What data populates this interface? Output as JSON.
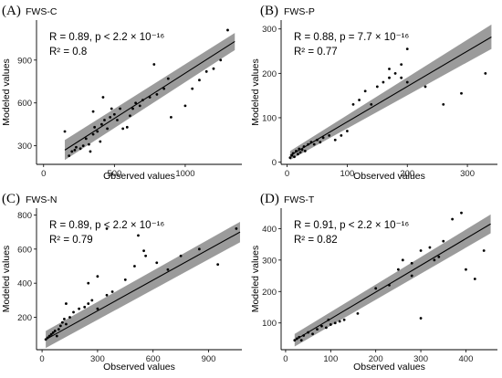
{
  "chart_data": [
    {
      "type": "scatter",
      "panel_letter": "(A)",
      "panel_tag": "FWS-C",
      "stat_line1": "R = 0.89, p < 2.2 × 10⁻¹⁶",
      "stat_line2": "R² = 0.8",
      "xlabel": "Observed values",
      "ylabel": "Modeled values",
      "xlim": [
        -50,
        1400
      ],
      "ylim": [
        170,
        1180
      ],
      "xticks": [
        0,
        500,
        1000
      ],
      "yticks": [
        300,
        600,
        900
      ],
      "fit_line": {
        "x": [
          150,
          1350
        ],
        "y": [
          270,
          1030
        ]
      },
      "confidence_band": {
        "x": [
          150,
          1350
        ],
        "lower": [
          200,
          970
        ],
        "upper": [
          340,
          1090
        ]
      },
      "points": [
        [
          180,
          230
        ],
        [
          200,
          260
        ],
        [
          220,
          270
        ],
        [
          230,
          290
        ],
        [
          260,
          280
        ],
        [
          280,
          300
        ],
        [
          300,
          350
        ],
        [
          320,
          310
        ],
        [
          330,
          260
        ],
        [
          350,
          380
        ],
        [
          360,
          430
        ],
        [
          380,
          400
        ],
        [
          400,
          330
        ],
        [
          410,
          450
        ],
        [
          430,
          480
        ],
        [
          450,
          420
        ],
        [
          470,
          500
        ],
        [
          480,
          560
        ],
        [
          500,
          520
        ],
        [
          520,
          480
        ],
        [
          540,
          560
        ],
        [
          560,
          420
        ],
        [
          590,
          430
        ],
        [
          610,
          510
        ],
        [
          630,
          560
        ],
        [
          650,
          600
        ],
        [
          680,
          580
        ],
        [
          700,
          620
        ],
        [
          750,
          640
        ],
        [
          800,
          660
        ],
        [
          850,
          700
        ],
        [
          900,
          500
        ],
        [
          1000,
          580
        ],
        [
          1050,
          700
        ],
        [
          1100,
          760
        ],
        [
          1150,
          820
        ],
        [
          1200,
          840
        ],
        [
          1250,
          900
        ],
        [
          1300,
          1110
        ],
        [
          150,
          400
        ],
        [
          350,
          540
        ],
        [
          420,
          640
        ],
        [
          780,
          870
        ],
        [
          880,
          770
        ]
      ]
    },
    {
      "type": "scatter",
      "panel_letter": "(B)",
      "panel_tag": "FWS-P",
      "stat_line1": "R = 0.88, p = 7.7 × 10⁻¹⁶",
      "stat_line2": "R² = 0.77",
      "xlabel": "Observed values",
      "ylabel": "Modeled values",
      "xlim": [
        -10,
        350
      ],
      "ylim": [
        -5,
        320
      ],
      "xticks": [
        0,
        100,
        200,
        300
      ],
      "yticks": [
        0,
        100,
        200,
        300
      ],
      "fit_line": {
        "x": [
          5,
          340
        ],
        "y": [
          15,
          282
        ]
      },
      "confidence_band": {
        "x": [
          5,
          340
        ],
        "lower": [
          5,
          255
        ],
        "upper": [
          25,
          310
        ]
      },
      "points": [
        [
          5,
          10
        ],
        [
          8,
          15
        ],
        [
          10,
          20
        ],
        [
          12,
          12
        ],
        [
          15,
          25
        ],
        [
          18,
          18
        ],
        [
          20,
          30
        ],
        [
          22,
          22
        ],
        [
          25,
          28
        ],
        [
          28,
          35
        ],
        [
          30,
          25
        ],
        [
          35,
          40
        ],
        [
          40,
          45
        ],
        [
          45,
          40
        ],
        [
          50,
          50
        ],
        [
          55,
          45
        ],
        [
          60,
          55
        ],
        [
          70,
          60
        ],
        [
          80,
          50
        ],
        [
          90,
          60
        ],
        [
          100,
          70
        ],
        [
          110,
          130
        ],
        [
          120,
          140
        ],
        [
          130,
          160
        ],
        [
          140,
          130
        ],
        [
          150,
          170
        ],
        [
          160,
          180
        ],
        [
          170,
          210
        ],
        [
          180,
          200
        ],
        [
          190,
          220
        ],
        [
          200,
          180
        ],
        [
          230,
          170
        ],
        [
          260,
          130
        ],
        [
          290,
          155
        ],
        [
          330,
          200
        ],
        [
          200,
          255
        ],
        [
          190,
          190
        ],
        [
          170,
          190
        ]
      ]
    },
    {
      "type": "scatter",
      "panel_letter": "(C)",
      "panel_tag": "FWS-N",
      "stat_line1": "R = 0.89, p < 2.2 × 10⁻¹⁶",
      "stat_line2": "R² = 0.79",
      "xlabel": "Observed values",
      "ylabel": "Modeled values",
      "xlim": [
        -30,
        1080
      ],
      "ylim": [
        10,
        840
      ],
      "xticks": [
        0,
        300,
        600,
        900
      ],
      "yticks": [
        200,
        400,
        600,
        800
      ],
      "fit_line": {
        "x": [
          20,
          1070
        ],
        "y": [
          70,
          700
        ]
      },
      "confidence_band": {
        "x": [
          20,
          1070
        ],
        "lower": [
          20,
          640
        ],
        "upper": [
          120,
          760
        ]
      },
      "points": [
        [
          20,
          70
        ],
        [
          30,
          80
        ],
        [
          40,
          90
        ],
        [
          50,
          100
        ],
        [
          60,
          110
        ],
        [
          70,
          120
        ],
        [
          80,
          90
        ],
        [
          90,
          130
        ],
        [
          100,
          150
        ],
        [
          110,
          170
        ],
        [
          120,
          190
        ],
        [
          130,
          160
        ],
        [
          150,
          200
        ],
        [
          170,
          230
        ],
        [
          200,
          250
        ],
        [
          230,
          260
        ],
        [
          250,
          280
        ],
        [
          270,
          300
        ],
        [
          300,
          250
        ],
        [
          350,
          330
        ],
        [
          380,
          350
        ],
        [
          450,
          420
        ],
        [
          500,
          500
        ],
        [
          520,
          680
        ],
        [
          560,
          560
        ],
        [
          620,
          520
        ],
        [
          680,
          480
        ],
        [
          750,
          560
        ],
        [
          850,
          600
        ],
        [
          950,
          510
        ],
        [
          1050,
          720
        ],
        [
          130,
          280
        ],
        [
          250,
          400
        ],
        [
          300,
          440
        ],
        [
          350,
          720
        ],
        [
          550,
          590
        ]
      ]
    },
    {
      "type": "scatter",
      "panel_letter": "(D)",
      "panel_tag": "FWS-T",
      "stat_line1": "R = 0.91, p < 2.2 × 10⁻¹⁶",
      "stat_line2": "R² = 0.82",
      "xlabel": "Observed values",
      "ylabel": "Modeled values",
      "xlim": [
        -10,
        470
      ],
      "ylim": [
        15,
        465
      ],
      "xticks": [
        0,
        100,
        200,
        300,
        400
      ],
      "yticks": [
        100,
        200,
        300,
        400
      ],
      "fit_line": {
        "x": [
          20,
          455
        ],
        "y": [
          45,
          415
        ]
      },
      "confidence_band": {
        "x": [
          20,
          455
        ],
        "lower": [
          25,
          385
        ],
        "upper": [
          65,
          445
        ]
      },
      "points": [
        [
          20,
          45
        ],
        [
          25,
          50
        ],
        [
          30,
          55
        ],
        [
          35,
          45
        ],
        [
          40,
          60
        ],
        [
          50,
          70
        ],
        [
          60,
          65
        ],
        [
          70,
          80
        ],
        [
          80,
          90
        ],
        [
          90,
          85
        ],
        [
          95,
          110
        ],
        [
          100,
          95
        ],
        [
          110,
          100
        ],
        [
          120,
          105
        ],
        [
          130,
          110
        ],
        [
          160,
          130
        ],
        [
          200,
          210
        ],
        [
          230,
          220
        ],
        [
          250,
          270
        ],
        [
          260,
          300
        ],
        [
          280,
          290
        ],
        [
          300,
          330
        ],
        [
          320,
          340
        ],
        [
          340,
          310
        ],
        [
          350,
          360
        ],
        [
          370,
          430
        ],
        [
          390,
          450
        ],
        [
          400,
          270
        ],
        [
          420,
          240
        ],
        [
          440,
          330
        ],
        [
          300,
          115
        ],
        [
          280,
          250
        ],
        [
          330,
          300
        ]
      ]
    }
  ]
}
